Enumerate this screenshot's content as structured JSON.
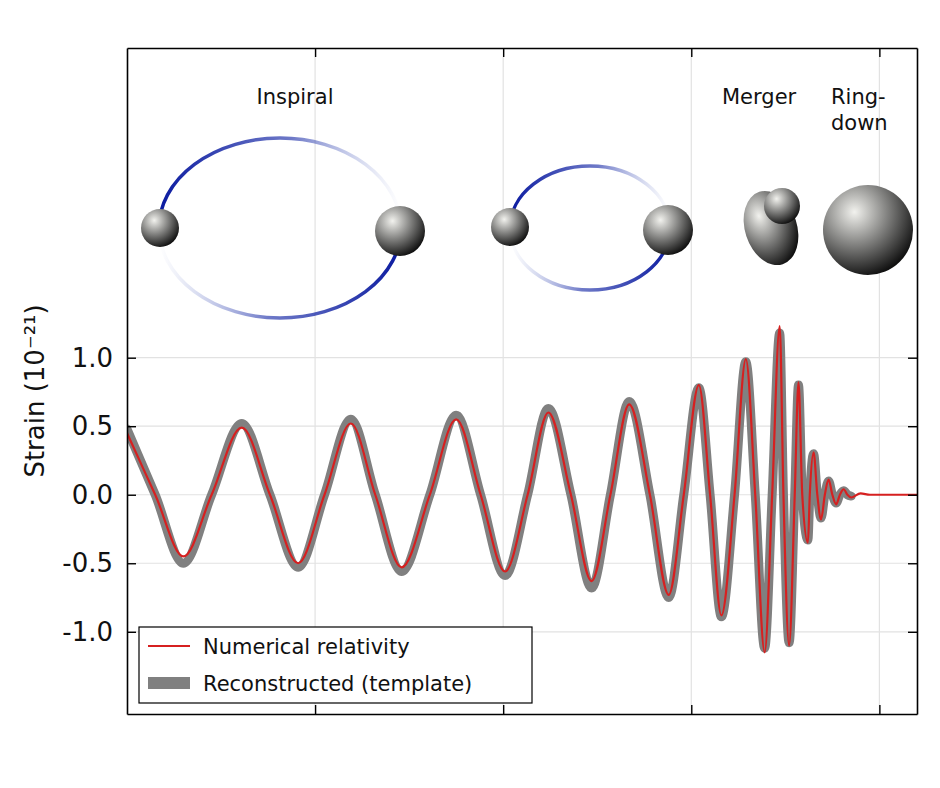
{
  "chart_data": {
    "type": "line",
    "y_label": "Strain (10⁻²¹)",
    "annotations": [
      "Inspiral",
      "Merger",
      "Ring-\ndown"
    ],
    "x": [
      0,
      0.15,
      0.3,
      0.45,
      0.61,
      0.76,
      0.91,
      1.05,
      1.19,
      1.32,
      1.46,
      1.61,
      1.75,
      1.88,
      2.01,
      2.13,
      2.24,
      2.36,
      2.47,
      2.57,
      2.67,
      2.78,
      2.88,
      2.96,
      3.04,
      3.1,
      3.16,
      3.23,
      3.29,
      3.34,
      3.39,
      3.43,
      3.47,
      3.49,
      3.52,
      3.55,
      3.57,
      3.59,
      3.62,
      3.63,
      3.65,
      3.67,
      3.69,
      3.71,
      3.73,
      3.75,
      3.77,
      3.79,
      3.81,
      3.83,
      3.85,
      3.9,
      3.95,
      4.2
    ],
    "series": [
      {
        "name": "Numerical relativity",
        "color": "#d62020",
        "line_style": "solid",
        "values": [
          0.45,
          0,
          -0.45,
          0,
          0.49,
          0,
          -0.5,
          0,
          0.52,
          0,
          -0.53,
          0,
          0.55,
          0,
          -0.56,
          0,
          0.6,
          0,
          -0.63,
          0,
          0.66,
          0,
          -0.73,
          0,
          0.8,
          0,
          -0.88,
          0,
          0.99,
          0,
          -1.15,
          0,
          1.23,
          0,
          -1.1,
          0,
          0.82,
          0,
          -0.35,
          0,
          0.31,
          0,
          -0.18,
          0,
          0.11,
          0,
          -0.07,
          0,
          0.04,
          0,
          -0.02,
          0.01,
          0,
          0
        ]
      },
      {
        "name": "Reconstructed (template)",
        "color": "#808080",
        "line_style": "thick",
        "values": [
          0.48,
          0,
          -0.5,
          0,
          0.52,
          0,
          -0.53,
          0,
          0.55,
          0,
          -0.56,
          0,
          0.58,
          0,
          -0.59,
          0,
          0.63,
          0,
          -0.68,
          0,
          0.68,
          0,
          -0.75,
          0,
          0.78,
          0,
          -0.89,
          0,
          0.97,
          0,
          -1.12,
          0,
          1.18,
          0,
          -1.08,
          0,
          0.8,
          0,
          -0.33,
          0,
          0.3,
          0,
          -0.17,
          0,
          0.1,
          0,
          -0.06,
          0,
          0.03,
          0,
          -0.01,
          null,
          null,
          null
        ]
      }
    ],
    "xlim": [
      0,
      4.2
    ],
    "xticks": [
      1,
      2,
      3,
      4
    ],
    "ylim": [
      -1.6,
      3.26
    ],
    "yticks": [
      {
        "value": -1,
        "label": "-1.0"
      },
      -0.5,
      {
        "value": 0,
        "label": "0.0"
      },
      0.5,
      {
        "value": 1,
        "label": "1.0"
      }
    ],
    "tick_labels": "y",
    "grid": true,
    "legend": "lower left"
  }
}
